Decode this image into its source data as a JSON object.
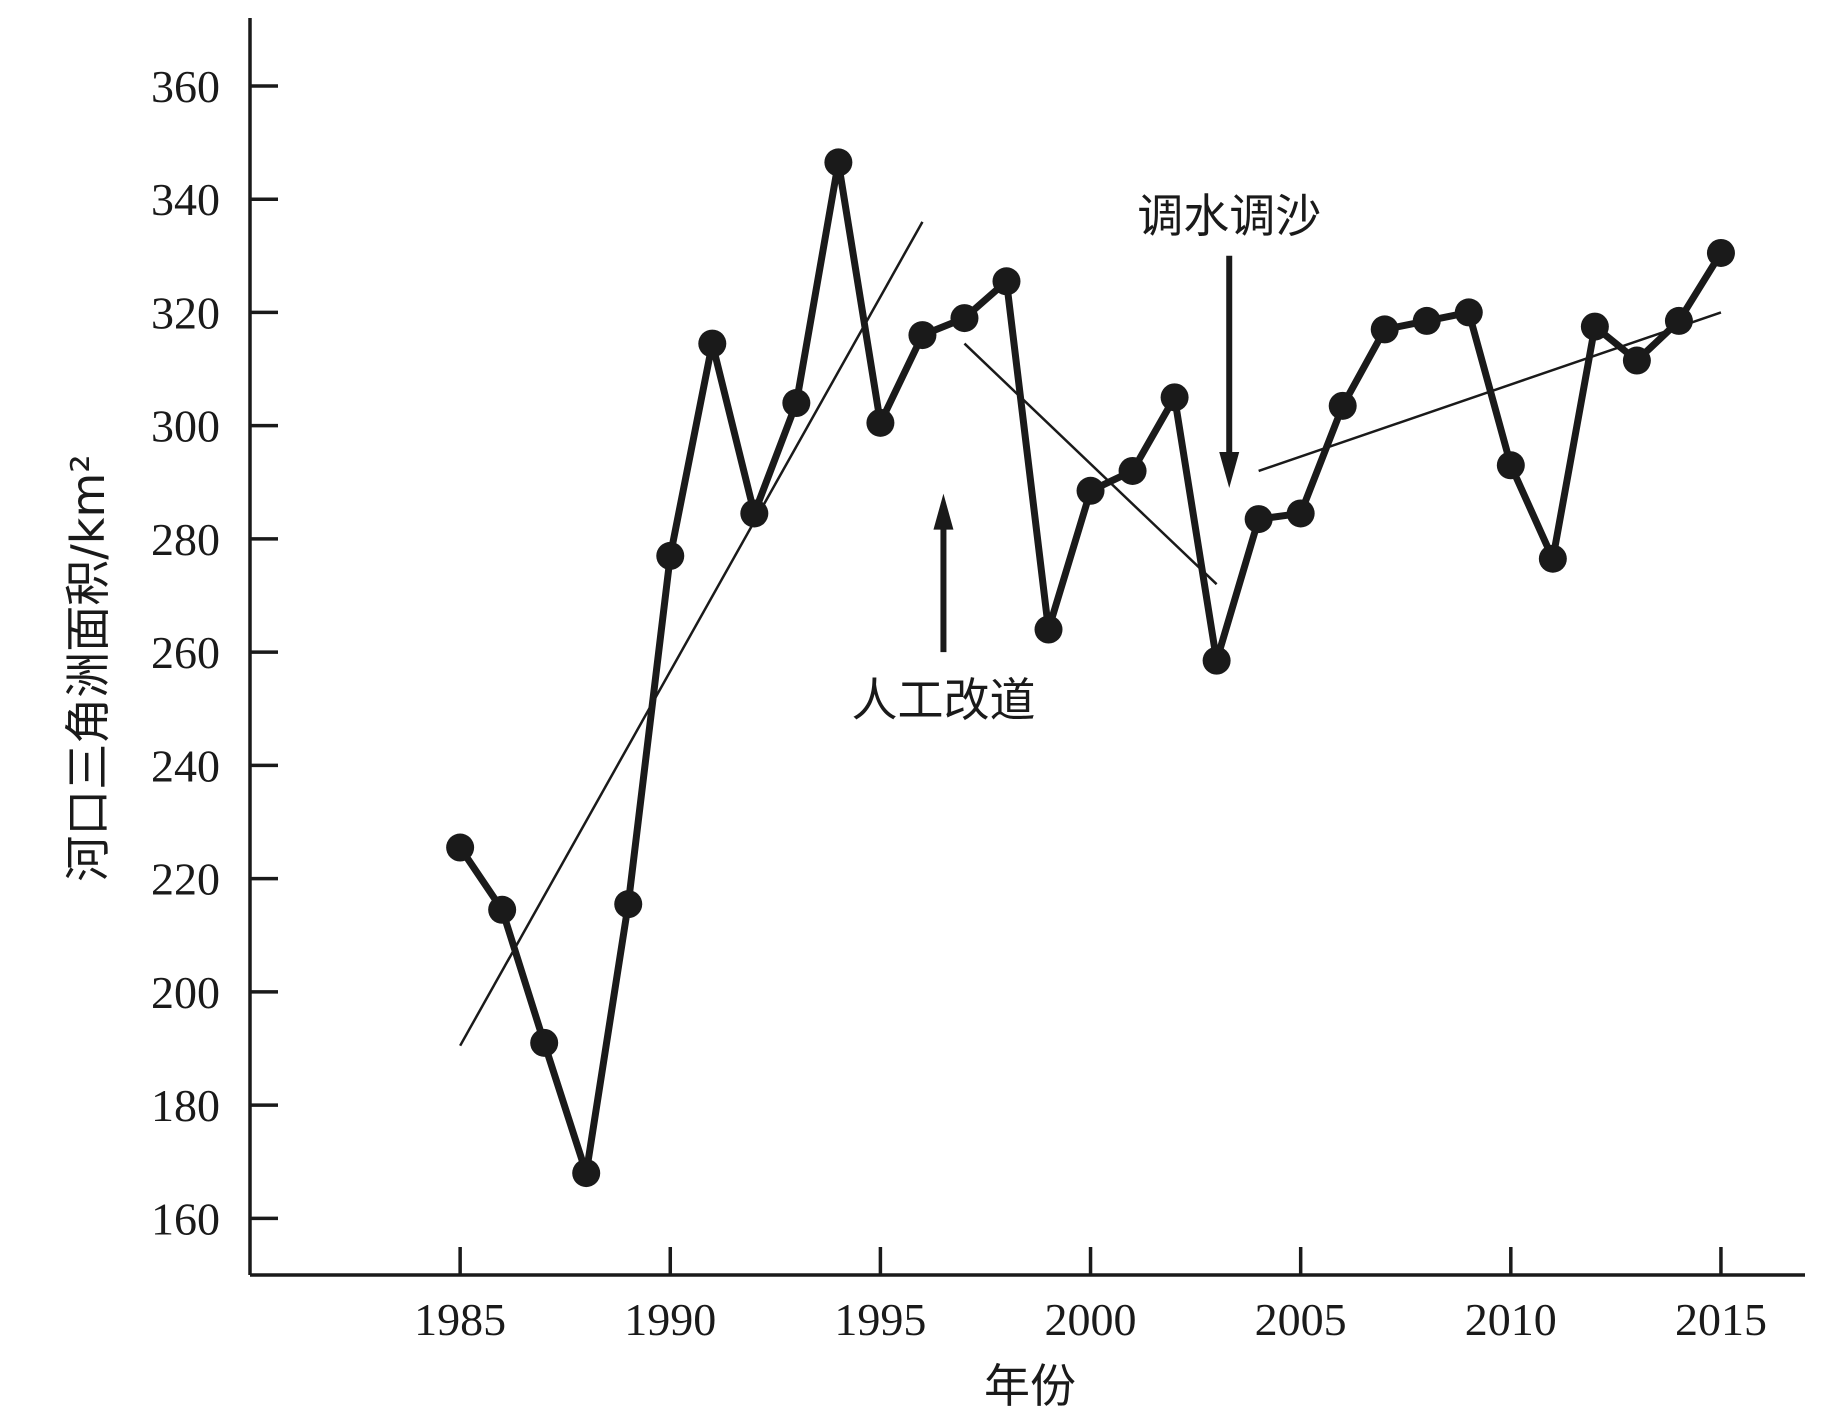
{
  "chart_data": {
    "type": "line",
    "title": "",
    "xlabel": "年份",
    "ylabel": "河口三角洲面积/km²",
    "xlim": [
      1980,
      2017
    ],
    "ylim": [
      150,
      372
    ],
    "xticks": [
      1985,
      1990,
      1995,
      2000,
      2005,
      2010,
      2015
    ],
    "yticks": [
      160,
      180,
      200,
      220,
      240,
      260,
      280,
      300,
      320,
      340,
      360
    ],
    "grid": false,
    "legend": "none",
    "series": [
      {
        "x": [
          1985,
          1986,
          1987,
          1988,
          1989,
          1990,
          1991,
          1992,
          1993,
          1994,
          1995,
          1996,
          1997,
          1998,
          1999,
          2000,
          2001,
          2002,
          2003,
          2004,
          2005,
          2006,
          2007,
          2008,
          2009,
          2010,
          2011,
          2012,
          2013,
          2014,
          2015
        ],
        "y": [
          225.5,
          214.5,
          191,
          168,
          215.5,
          277,
          314.5,
          284.5,
          304,
          346.5,
          300.5,
          316,
          319,
          325.5,
          264,
          288.5,
          292,
          305,
          258.5,
          283.5,
          284.5,
          303.5,
          317,
          318.5,
          320,
          293,
          276.5,
          317.5,
          311.5,
          318.5,
          330.5
        ]
      }
    ],
    "trend_lines": [
      {
        "x": [
          1985,
          1996
        ],
        "y": [
          190.5,
          336
        ]
      },
      {
        "x": [
          1997,
          2003
        ],
        "y": [
          314.5,
          272
        ]
      },
      {
        "x": [
          2004,
          2015
        ],
        "y": [
          292,
          320
        ]
      }
    ],
    "annotations": [
      {
        "text": "人工改道",
        "x": 1996.5,
        "arrow": "up",
        "arrow_from": 260,
        "arrow_to": 288
      },
      {
        "text": "调水调沙",
        "x": 2003.3,
        "arrow": "down",
        "arrow_from": 330,
        "arrow_to": 289
      }
    ]
  }
}
